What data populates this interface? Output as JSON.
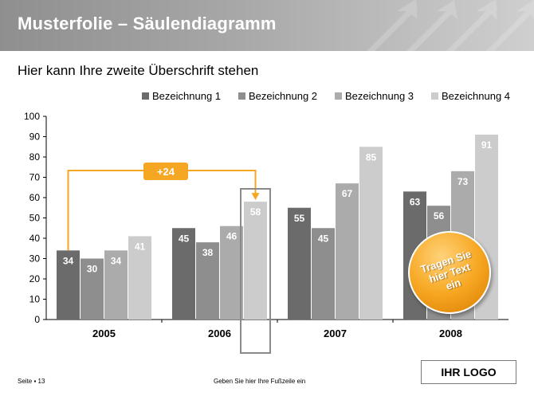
{
  "header": {
    "title": "Musterfolie – Säulendiagramm"
  },
  "subtitle": "Hier kann Ihre zweite Überschrift stehen",
  "chart_data": {
    "type": "bar",
    "categories": [
      "2005",
      "2006",
      "2007",
      "2008"
    ],
    "series": [
      {
        "name": "Bezeichnung 1",
        "values": [
          34,
          45,
          55,
          63
        ],
        "color": "#6b6b6b"
      },
      {
        "name": "Bezeichnung 2",
        "values": [
          30,
          38,
          45,
          56
        ],
        "color": "#8e8e8e"
      },
      {
        "name": "Bezeichnung 3",
        "values": [
          34,
          46,
          67,
          73
        ],
        "color": "#ababab"
      },
      {
        "name": "Bezeichnung 4",
        "values": [
          41,
          58,
          85,
          91
        ],
        "color": "#cccccc"
      }
    ],
    "ylim": [
      0,
      100
    ],
    "yticks": [
      0,
      10,
      20,
      30,
      40,
      50,
      60,
      70,
      80,
      90,
      100
    ],
    "legend_position": "top-right",
    "grid": false
  },
  "annotation": {
    "delta_label": "+24",
    "highlight_color": "#f5a623"
  },
  "sticker": {
    "text": "Tragen Sie\nhier Text\nein"
  },
  "footer": {
    "page": "Seite ▪ 13",
    "text": "Geben Sie hier Ihre Fußzeile ein"
  },
  "logo": {
    "text": "IHR LOGO"
  }
}
